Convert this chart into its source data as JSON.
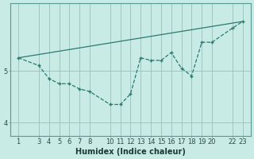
{
  "xlabel": "Humidex (Indice chaleur)",
  "background_color": "#c8ebe6",
  "line_color": "#2a7a6e",
  "grid_color": "#9bbfbb",
  "x_values": [
    1,
    3,
    4,
    5,
    6,
    7,
    8,
    10,
    11,
    12,
    13,
    14,
    15,
    16,
    17,
    18,
    19,
    20,
    22,
    23
  ],
  "y_values": [
    5.25,
    5.1,
    4.85,
    4.75,
    4.75,
    4.65,
    4.6,
    4.35,
    4.35,
    4.55,
    5.25,
    5.2,
    5.2,
    5.35,
    5.05,
    4.9,
    5.55,
    5.55,
    5.82,
    5.95
  ],
  "y_trend_start": 5.25,
  "y_trend_end": 5.95,
  "x_trend_start": 1,
  "x_trend_end": 23,
  "yticks": [
    4,
    5
  ],
  "xtick_labels": [
    "1",
    "3",
    "4",
    "5",
    "6",
    "7",
    "8",
    "10",
    "11",
    "12",
    "13",
    "14",
    "15",
    "16",
    "17",
    "18",
    "19",
    "20",
    "22",
    "23"
  ],
  "ylim_bottom": 3.75,
  "ylim_top": 6.3,
  "xlim_left": 0.2,
  "xlim_right": 23.8,
  "fontsize_xlabel": 7,
  "fontsize_ticks": 6
}
